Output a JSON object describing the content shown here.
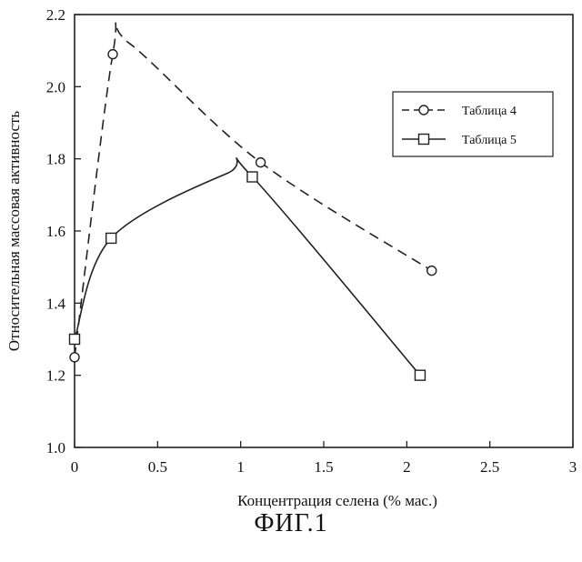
{
  "chart_data": {
    "type": "line",
    "title": "",
    "xlabel": "Концентрация селена (% мас.)",
    "ylabel": "Относительная массовая активность",
    "xlim": [
      0,
      3
    ],
    "ylim": [
      1.0,
      2.2
    ],
    "xticks": [
      "0",
      "0.5",
      "1",
      "1.5",
      "2",
      "2.5",
      "3"
    ],
    "yticks": [
      "1.0",
      "1.2",
      "1.4",
      "1.6",
      "1.8",
      "2.0",
      "2.2"
    ],
    "grid": false,
    "legend_position": "top-right",
    "series": [
      {
        "name": "Таблица 4",
        "marker": "circle",
        "line_style": "dashed",
        "x": [
          0,
          0.23,
          1.12,
          2.15
        ],
        "y": [
          1.25,
          2.09,
          1.79,
          1.49
        ],
        "curve_peak": {
          "x": 0.33,
          "y": 2.12
        }
      },
      {
        "name": "Таблица 5",
        "marker": "square",
        "line_style": "solid",
        "x": [
          0,
          0.22,
          1.07,
          2.08
        ],
        "y": [
          1.3,
          1.58,
          1.75,
          1.2
        ],
        "curve_peak": {
          "x": 0.92,
          "y": 1.76
        }
      }
    ]
  },
  "caption": "ФИГ.1"
}
